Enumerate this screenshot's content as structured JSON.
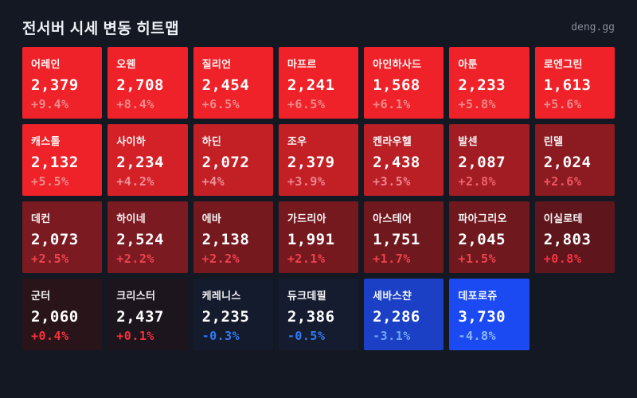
{
  "header": {
    "title": "전서버 시세 변동 히트맵",
    "brand": "deng.gg"
  },
  "colors": {
    "page_bg": "#141822",
    "title_text": "#eef2f6",
    "brand_text": "#848b99",
    "positive_strong_bg": "#ee2228",
    "negative_strong_bg": "#1c4af2"
  },
  "chart_data": {
    "type": "heatmap",
    "title": "전서버 시세 변동 히트맵",
    "columns": 7,
    "legend": "none",
    "tiles": [
      {
        "name": "어레인",
        "price": "2,379",
        "change": "+9.4%",
        "bg": "#ee2228",
        "pct_color": "#f18a8c"
      },
      {
        "name": "오웬",
        "price": "2,708",
        "change": "+8.4%",
        "bg": "#ee2228",
        "pct_color": "#f18a8c"
      },
      {
        "name": "질리언",
        "price": "2,454",
        "change": "+6.5%",
        "bg": "#ee2228",
        "pct_color": "#f18a8c"
      },
      {
        "name": "마프르",
        "price": "2,241",
        "change": "+6.5%",
        "bg": "#ee2228",
        "pct_color": "#f18a8c"
      },
      {
        "name": "아인하사드",
        "price": "1,568",
        "change": "+6.1%",
        "bg": "#ee2228",
        "pct_color": "#f18a8c"
      },
      {
        "name": "아툰",
        "price": "2,233",
        "change": "+5.8%",
        "bg": "#ee2228",
        "pct_color": "#f18a8c"
      },
      {
        "name": "로엔그린",
        "price": "1,613",
        "change": "+5.6%",
        "bg": "#ee2228",
        "pct_color": "#f18a8c"
      },
      {
        "name": "캐스톨",
        "price": "2,132",
        "change": "+5.5%",
        "bg": "#ee2228",
        "pct_color": "#f18a8c"
      },
      {
        "name": "사이하",
        "price": "2,234",
        "change": "+4.2%",
        "bg": "#d42127",
        "pct_color": "#ec8f97"
      },
      {
        "name": "하딘",
        "price": "2,072",
        "change": "+4%",
        "bg": "#c32026",
        "pct_color": "#ec8f97"
      },
      {
        "name": "조우",
        "price": "2,379",
        "change": "+3.9%",
        "bg": "#c32026",
        "pct_color": "#ee8590"
      },
      {
        "name": "켄라우헬",
        "price": "2,438",
        "change": "+3.5%",
        "bg": "#ba1f25",
        "pct_color": "#ee8590"
      },
      {
        "name": "발센",
        "price": "2,087",
        "change": "+2.8%",
        "bg": "#a11d23",
        "pct_color": "#f2626e"
      },
      {
        "name": "린델",
        "price": "2,024",
        "change": "+2.6%",
        "bg": "#8c1b21",
        "pct_color": "#f05663"
      },
      {
        "name": "데컨",
        "price": "2,073",
        "change": "+2.5%",
        "bg": "#7b1a21",
        "pct_color": "#ef4250"
      },
      {
        "name": "하이네",
        "price": "2,524",
        "change": "+2.2%",
        "bg": "#7b1a21",
        "pct_color": "#ef4250"
      },
      {
        "name": "에바",
        "price": "2,138",
        "change": "+2.2%",
        "bg": "#75191f",
        "pct_color": "#ef4250"
      },
      {
        "name": "가드리아",
        "price": "1,991",
        "change": "+2.1%",
        "bg": "#75191f",
        "pct_color": "#ef4250"
      },
      {
        "name": "아스테어",
        "price": "1,751",
        "change": "+1.7%",
        "bg": "#6f181e",
        "pct_color": "#ef4250"
      },
      {
        "name": "파아그리오",
        "price": "2,045",
        "change": "+1.5%",
        "bg": "#6f181e",
        "pct_color": "#ef4250"
      },
      {
        "name": "이실로테",
        "price": "2,803",
        "change": "+0.8%",
        "bg": "#5e161c",
        "pct_color": "#f53343"
      },
      {
        "name": "군터",
        "price": "2,060",
        "change": "+0.4%",
        "bg": "#281419",
        "pct_color": "#f8323c"
      },
      {
        "name": "크리스터",
        "price": "2,437",
        "change": "+0.1%",
        "bg": "#1c151d",
        "pct_color": "#fa2e3a"
      },
      {
        "name": "케레니스",
        "price": "2,235",
        "change": "-0.3%",
        "bg": "#141b2c",
        "pct_color": "#2e7bf6"
      },
      {
        "name": "듀크데필",
        "price": "2,386",
        "change": "-0.5%",
        "bg": "#151c30",
        "pct_color": "#2e7bf6"
      },
      {
        "name": "세바스챤",
        "price": "2,286",
        "change": "-3.1%",
        "bg": "#1b3fc5",
        "pct_color": "#6da6f5"
      },
      {
        "name": "데포로쥬",
        "price": "3,730",
        "change": "-4.8%",
        "bg": "#1c4af2",
        "pct_color": "#8db9f7"
      }
    ]
  }
}
